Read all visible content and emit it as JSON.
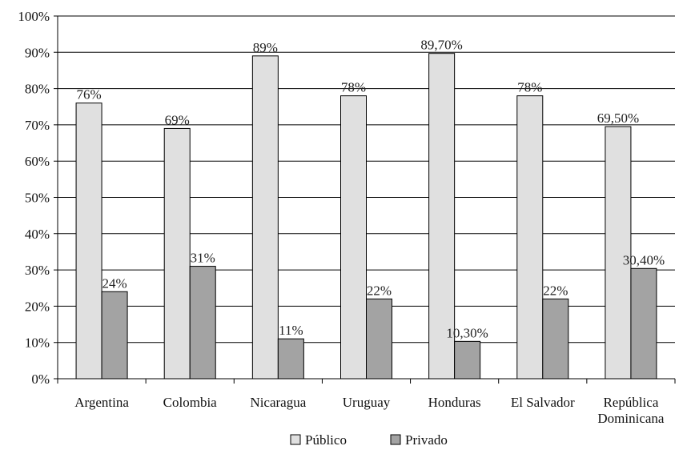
{
  "chart_data": {
    "type": "bar",
    "title": "",
    "xlabel": "",
    "ylabel": "",
    "ylim": [
      0,
      100
    ],
    "y_ticks": [
      "0%",
      "10%",
      "20%",
      "30%",
      "40%",
      "50%",
      "60%",
      "70%",
      "80%",
      "90%",
      "100%"
    ],
    "grid": "horizontal",
    "legend_position": "bottom",
    "categories": [
      [
        "Argentina"
      ],
      [
        "Colombia"
      ],
      [
        "Nicaragua"
      ],
      [
        "Uruguay"
      ],
      [
        "Honduras"
      ],
      [
        "El Salvador"
      ],
      [
        "República",
        "Dominicana"
      ]
    ],
    "series": [
      {
        "name": "Público",
        "color": "#e0e0e0",
        "values": [
          76,
          69,
          89,
          78,
          89.7,
          78,
          69.5
        ],
        "labels": [
          "76%",
          "69%",
          "89%",
          "78%",
          "89,70%",
          "78%",
          "69,50%"
        ]
      },
      {
        "name": "Privado",
        "color": "#a3a3a3",
        "values": [
          24,
          31,
          11,
          22,
          10.3,
          22,
          30.4
        ],
        "labels": [
          "24%",
          "31%",
          "11%",
          "22%",
          "10,30%",
          "22%",
          "30,40%"
        ]
      }
    ]
  }
}
